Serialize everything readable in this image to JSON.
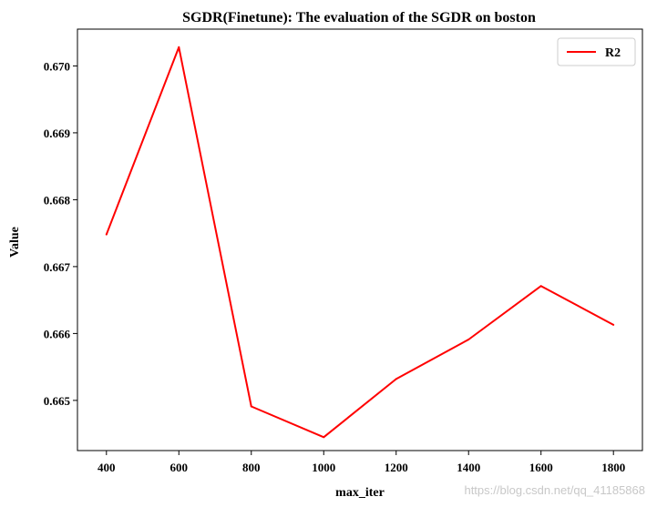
{
  "chart_data": {
    "type": "line",
    "title": "SGDR(Finetune): The evaluation of the SGDR on boston",
    "xlabel": "max_iter",
    "ylabel": "Value",
    "x": [
      400,
      600,
      800,
      1000,
      1200,
      1400,
      1600,
      1800
    ],
    "x_ticks": [
      "400",
      "600",
      "800",
      "1000",
      "1200",
      "1400",
      "1600",
      "1800"
    ],
    "y_ticks": [
      "0.665",
      "0.666",
      "0.667",
      "0.668",
      "0.669",
      "0.670"
    ],
    "y_tick_values": [
      0.665,
      0.666,
      0.667,
      0.668,
      0.669,
      0.67
    ],
    "xlim": [
      320,
      1880
    ],
    "ylim": [
      0.66425,
      0.67055
    ],
    "series": [
      {
        "name": "R2",
        "color": "#ff0000",
        "values": [
          0.66748,
          0.67028,
          0.66491,
          0.66445,
          0.66532,
          0.66591,
          0.66671,
          0.66613
        ]
      }
    ],
    "legend": {
      "position": "top-right"
    },
    "grid": false
  },
  "watermark": "https://blog.csdn.net/qq_41185868"
}
